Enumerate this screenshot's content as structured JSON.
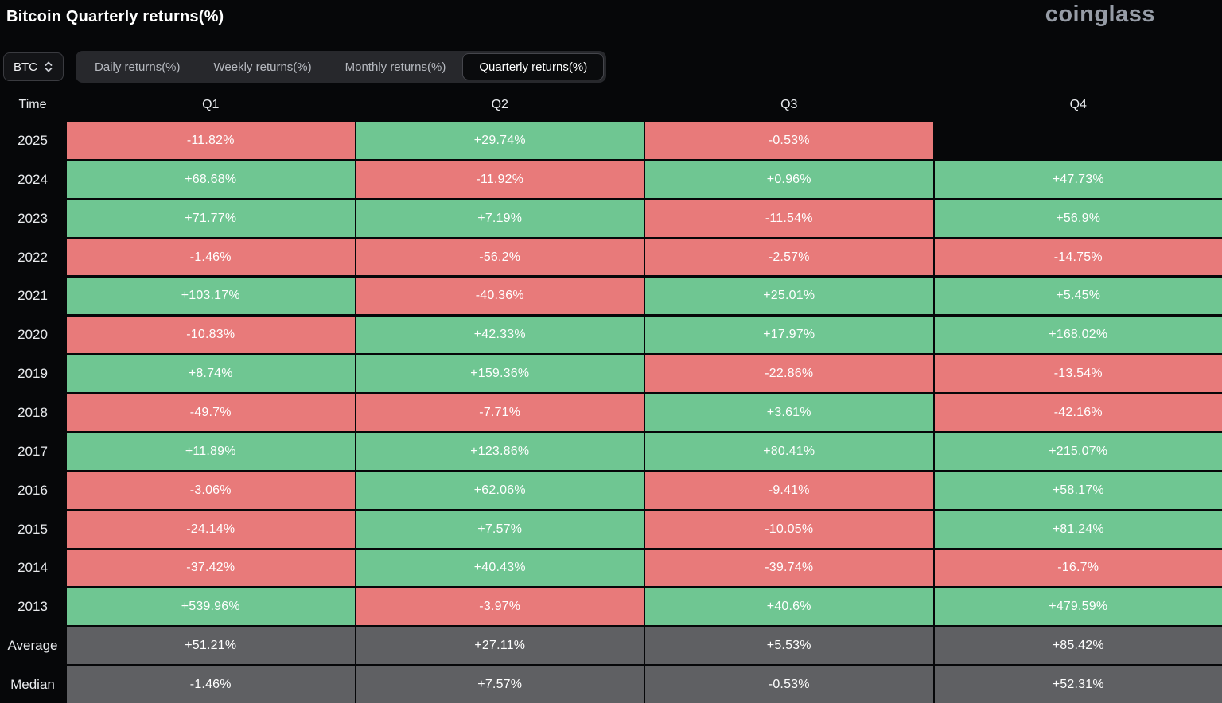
{
  "page": {
    "title": "Bitcoin Quarterly returns(%)",
    "logo": "coinglass"
  },
  "controls": {
    "symbol": "BTC",
    "tabs": [
      {
        "label": "Daily returns(%)",
        "active": false
      },
      {
        "label": "Weekly returns(%)",
        "active": false
      },
      {
        "label": "Monthly returns(%)",
        "active": false
      },
      {
        "label": "Quarterly returns(%)",
        "active": true
      }
    ]
  },
  "colors": {
    "positive": "#6fc692",
    "negative": "#e87a7a",
    "neutral": "#5f6063",
    "background": "#060709"
  },
  "table": {
    "headers": [
      "Time",
      "Q1",
      "Q2",
      "Q3",
      "Q4"
    ],
    "rows": [
      {
        "label": "2025",
        "cells": [
          {
            "v": "-11.82%",
            "t": "neg"
          },
          {
            "v": "+29.74%",
            "t": "pos"
          },
          {
            "v": "-0.53%",
            "t": "neg"
          },
          {
            "v": "",
            "t": "empty"
          }
        ]
      },
      {
        "label": "2024",
        "cells": [
          {
            "v": "+68.68%",
            "t": "pos"
          },
          {
            "v": "-11.92%",
            "t": "neg"
          },
          {
            "v": "+0.96%",
            "t": "pos"
          },
          {
            "v": "+47.73%",
            "t": "pos"
          }
        ]
      },
      {
        "label": "2023",
        "cells": [
          {
            "v": "+71.77%",
            "t": "pos"
          },
          {
            "v": "+7.19%",
            "t": "pos"
          },
          {
            "v": "-11.54%",
            "t": "neg"
          },
          {
            "v": "+56.9%",
            "t": "pos"
          }
        ]
      },
      {
        "label": "2022",
        "cells": [
          {
            "v": "-1.46%",
            "t": "neg"
          },
          {
            "v": "-56.2%",
            "t": "neg"
          },
          {
            "v": "-2.57%",
            "t": "neg"
          },
          {
            "v": "-14.75%",
            "t": "neg"
          }
        ]
      },
      {
        "label": "2021",
        "cells": [
          {
            "v": "+103.17%",
            "t": "pos"
          },
          {
            "v": "-40.36%",
            "t": "neg"
          },
          {
            "v": "+25.01%",
            "t": "pos"
          },
          {
            "v": "+5.45%",
            "t": "pos"
          }
        ]
      },
      {
        "label": "2020",
        "cells": [
          {
            "v": "-10.83%",
            "t": "neg"
          },
          {
            "v": "+42.33%",
            "t": "pos"
          },
          {
            "v": "+17.97%",
            "t": "pos"
          },
          {
            "v": "+168.02%",
            "t": "pos"
          }
        ]
      },
      {
        "label": "2019",
        "cells": [
          {
            "v": "+8.74%",
            "t": "pos"
          },
          {
            "v": "+159.36%",
            "t": "pos"
          },
          {
            "v": "-22.86%",
            "t": "neg"
          },
          {
            "v": "-13.54%",
            "t": "neg"
          }
        ]
      },
      {
        "label": "2018",
        "cells": [
          {
            "v": "-49.7%",
            "t": "neg"
          },
          {
            "v": "-7.71%",
            "t": "neg"
          },
          {
            "v": "+3.61%",
            "t": "pos"
          },
          {
            "v": "-42.16%",
            "t": "neg"
          }
        ]
      },
      {
        "label": "2017",
        "cells": [
          {
            "v": "+11.89%",
            "t": "pos"
          },
          {
            "v": "+123.86%",
            "t": "pos"
          },
          {
            "v": "+80.41%",
            "t": "pos"
          },
          {
            "v": "+215.07%",
            "t": "pos"
          }
        ]
      },
      {
        "label": "2016",
        "cells": [
          {
            "v": "-3.06%",
            "t": "neg"
          },
          {
            "v": "+62.06%",
            "t": "pos"
          },
          {
            "v": "-9.41%",
            "t": "neg"
          },
          {
            "v": "+58.17%",
            "t": "pos"
          }
        ]
      },
      {
        "label": "2015",
        "cells": [
          {
            "v": "-24.14%",
            "t": "neg"
          },
          {
            "v": "+7.57%",
            "t": "pos"
          },
          {
            "v": "-10.05%",
            "t": "neg"
          },
          {
            "v": "+81.24%",
            "t": "pos"
          }
        ]
      },
      {
        "label": "2014",
        "cells": [
          {
            "v": "-37.42%",
            "t": "neg"
          },
          {
            "v": "+40.43%",
            "t": "pos"
          },
          {
            "v": "-39.74%",
            "t": "neg"
          },
          {
            "v": "-16.7%",
            "t": "neg"
          }
        ]
      },
      {
        "label": "2013",
        "cells": [
          {
            "v": "+539.96%",
            "t": "pos"
          },
          {
            "v": "-3.97%",
            "t": "neg"
          },
          {
            "v": "+40.6%",
            "t": "pos"
          },
          {
            "v": "+479.59%",
            "t": "pos"
          }
        ]
      },
      {
        "label": "Average",
        "cells": [
          {
            "v": "+51.21%",
            "t": "stat"
          },
          {
            "v": "+27.11%",
            "t": "stat"
          },
          {
            "v": "+5.53%",
            "t": "stat"
          },
          {
            "v": "+85.42%",
            "t": "stat"
          }
        ]
      },
      {
        "label": "Median",
        "cells": [
          {
            "v": "-1.46%",
            "t": "stat"
          },
          {
            "v": "+7.57%",
            "t": "stat"
          },
          {
            "v": "-0.53%",
            "t": "stat"
          },
          {
            "v": "+52.31%",
            "t": "stat"
          }
        ]
      }
    ]
  }
}
